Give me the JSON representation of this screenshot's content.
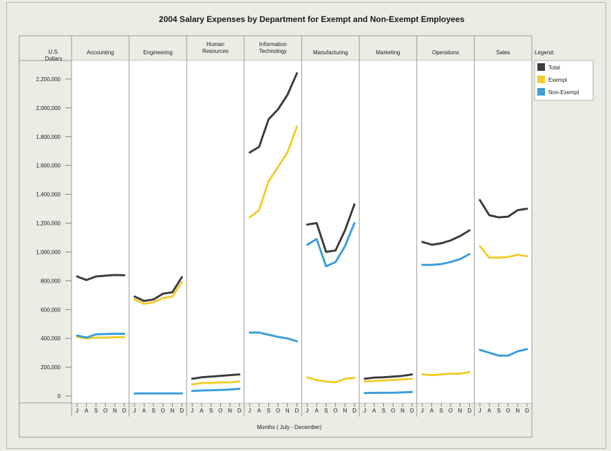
{
  "chart_data": {
    "type": "line",
    "title": "2004 Salary Expenses by Department for Exempt and Non-Exempt Employees",
    "ylabel": [
      "U.S.",
      "Dollars"
    ],
    "xlabel": "Months ( July - December)",
    "legend_title": "Legend:",
    "legend_placement": "right",
    "ylim": [
      0,
      2300000
    ],
    "yticks": [
      0,
      200000,
      400000,
      600000,
      800000,
      1000000,
      1200000,
      1400000,
      1600000,
      1800000,
      2000000,
      2200000
    ],
    "ytick_labels": [
      "0",
      "200,000",
      "400,000",
      "600,000",
      "800,000",
      "1,000,000",
      "1,200,000",
      "1,400,000",
      "1,600,000",
      "1,800,000",
      "2,000,000",
      "2,200,000"
    ],
    "months": [
      "J",
      "A",
      "S",
      "O",
      "N",
      "D"
    ],
    "series_styles": [
      {
        "name": "Total",
        "color": "#3c3c3c"
      },
      {
        "name": "Exempt",
        "color": "#f2cc2f"
      },
      {
        "name": "Non-Exempt",
        "color": "#3a9fd6"
      }
    ],
    "panels": [
      {
        "department": [
          "Accounting"
        ],
        "total": [
          830000,
          805000,
          830000,
          835000,
          840000,
          838000
        ],
        "exempt": [
          410000,
          400000,
          405000,
          405000,
          408000,
          408000
        ],
        "non_exempt": [
          420000,
          405000,
          428000,
          430000,
          432000,
          432000
        ]
      },
      {
        "department": [
          "Engineering"
        ],
        "total": [
          690000,
          660000,
          670000,
          710000,
          720000,
          825000
        ],
        "exempt": [
          670000,
          640000,
          650000,
          680000,
          690000,
          790000
        ],
        "non_exempt": [
          18000,
          18000,
          18000,
          18000,
          18000,
          18000
        ]
      },
      {
        "department": [
          "Human",
          "Resources"
        ],
        "total": [
          120000,
          130000,
          135000,
          140000,
          145000,
          150000
        ],
        "exempt": [
          80000,
          90000,
          90000,
          95000,
          95000,
          100000
        ],
        "non_exempt": [
          35000,
          38000,
          40000,
          42000,
          45000,
          50000
        ]
      },
      {
        "department": [
          "Information",
          "Technology"
        ],
        "total": [
          1690000,
          1730000,
          1920000,
          1990000,
          2090000,
          2240000
        ],
        "exempt": [
          1240000,
          1290000,
          1490000,
          1590000,
          1690000,
          1870000
        ],
        "non_exempt": [
          440000,
          440000,
          425000,
          410000,
          400000,
          380000
        ]
      },
      {
        "department": [
          "Manufacturing"
        ],
        "total": [
          1190000,
          1200000,
          1000000,
          1010000,
          1150000,
          1330000
        ],
        "exempt": [
          130000,
          110000,
          100000,
          95000,
          120000,
          125000
        ],
        "non_exempt": [
          1050000,
          1090000,
          900000,
          930000,
          1040000,
          1200000
        ]
      },
      {
        "department": [
          "Marketing"
        ],
        "total": [
          120000,
          128000,
          130000,
          135000,
          140000,
          150000
        ],
        "exempt": [
          100000,
          105000,
          108000,
          112000,
          115000,
          120000
        ],
        "non_exempt": [
          20000,
          22000,
          22000,
          23000,
          25000,
          28000
        ]
      },
      {
        "department": [
          "Operations"
        ],
        "total": [
          1070000,
          1050000,
          1060000,
          1080000,
          1110000,
          1150000
        ],
        "exempt": [
          150000,
          145000,
          150000,
          155000,
          155000,
          165000
        ],
        "non_exempt": [
          910000,
          910000,
          915000,
          930000,
          950000,
          985000
        ]
      },
      {
        "department": [
          "Sales"
        ],
        "total": [
          1360000,
          1255000,
          1240000,
          1245000,
          1290000,
          1300000
        ],
        "exempt": [
          1040000,
          960000,
          960000,
          965000,
          980000,
          970000
        ],
        "non_exempt": [
          320000,
          300000,
          280000,
          280000,
          310000,
          325000
        ]
      }
    ]
  }
}
